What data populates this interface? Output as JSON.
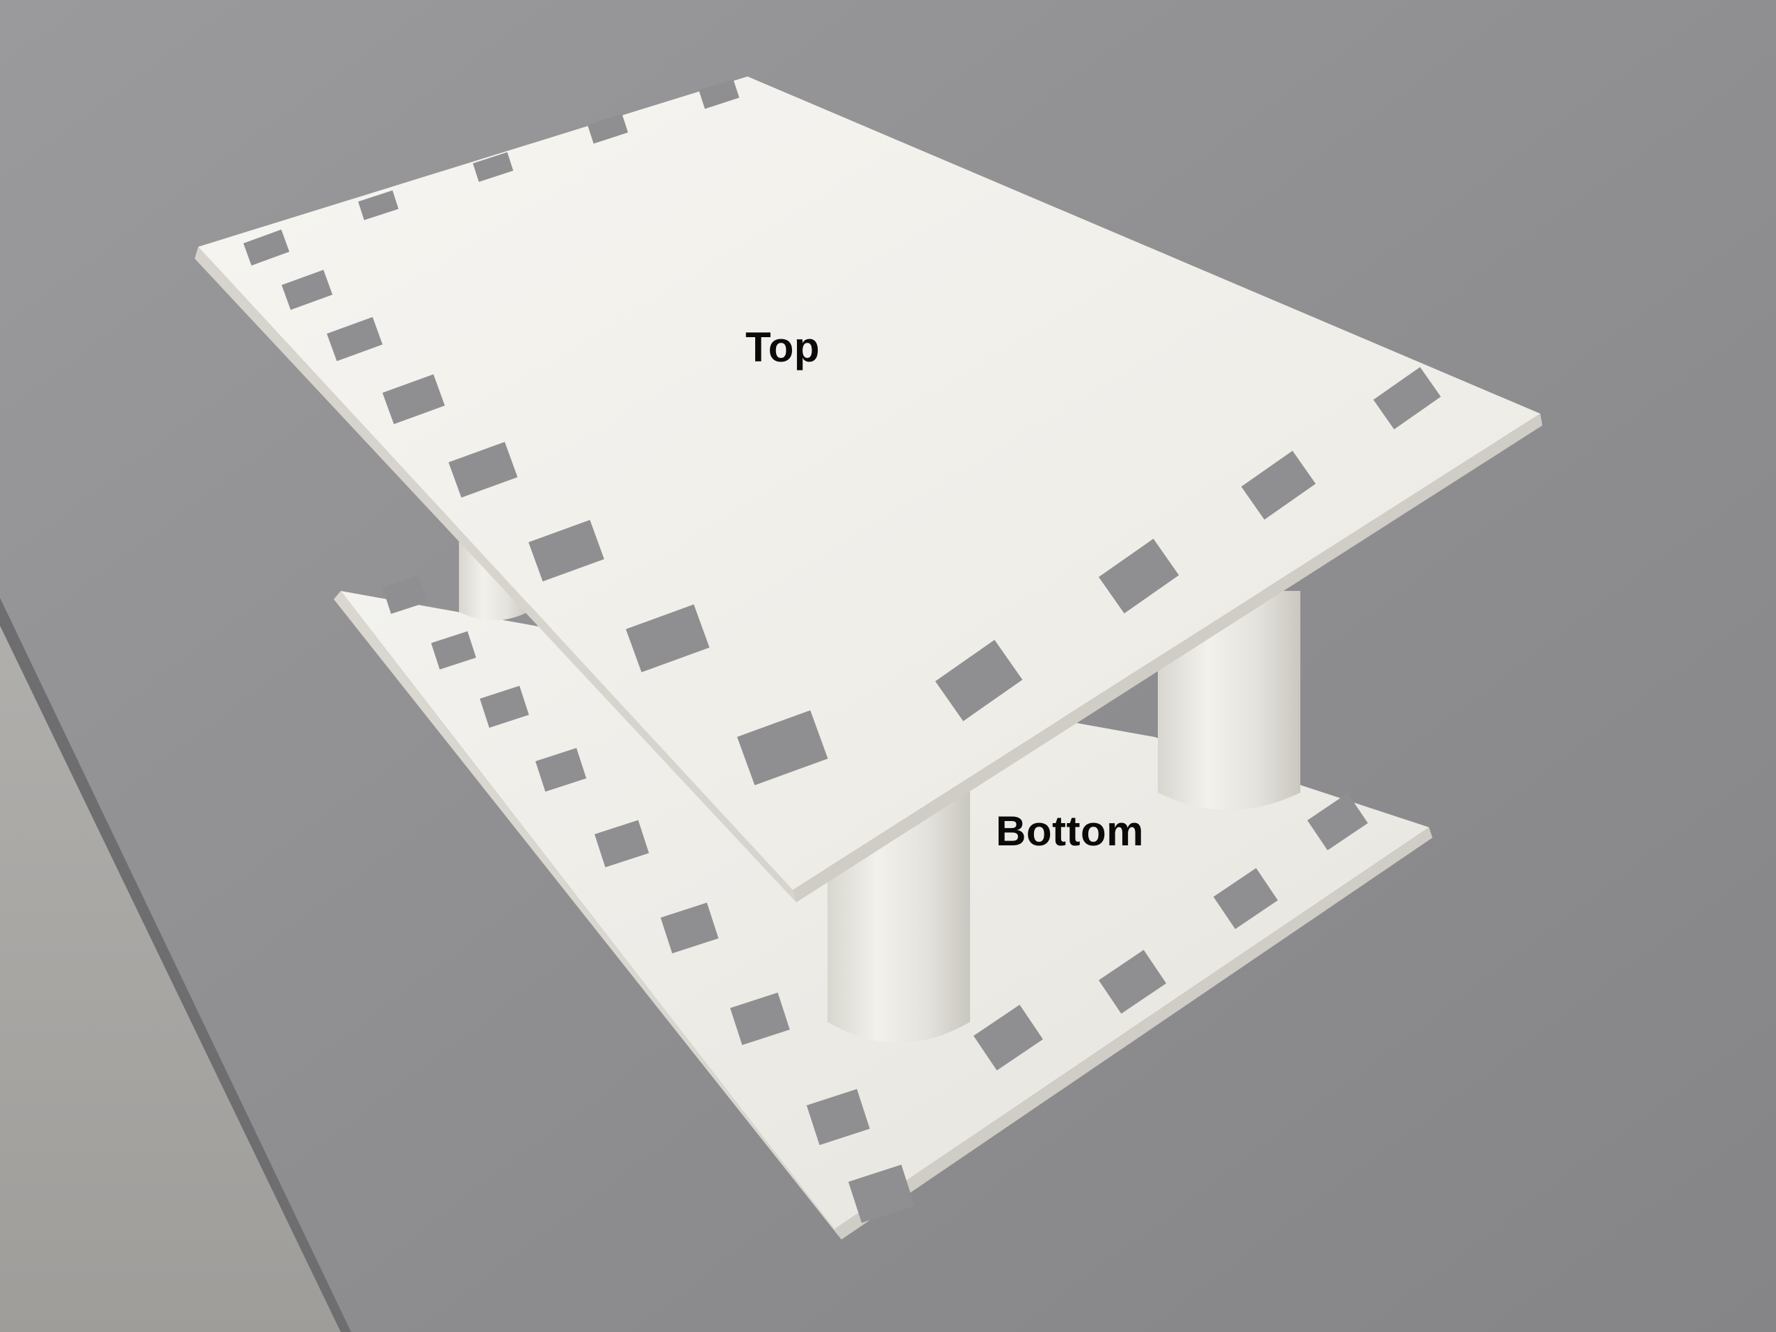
{
  "labels": {
    "top": "Top",
    "bottom": "Bottom"
  },
  "colors": {
    "table_surface": "#8e8e90",
    "floor": "#a7a6a4",
    "part_white": "#f3f2ee",
    "part_shadow": "#cfcdc6",
    "label_text": "#0a0a0a"
  }
}
